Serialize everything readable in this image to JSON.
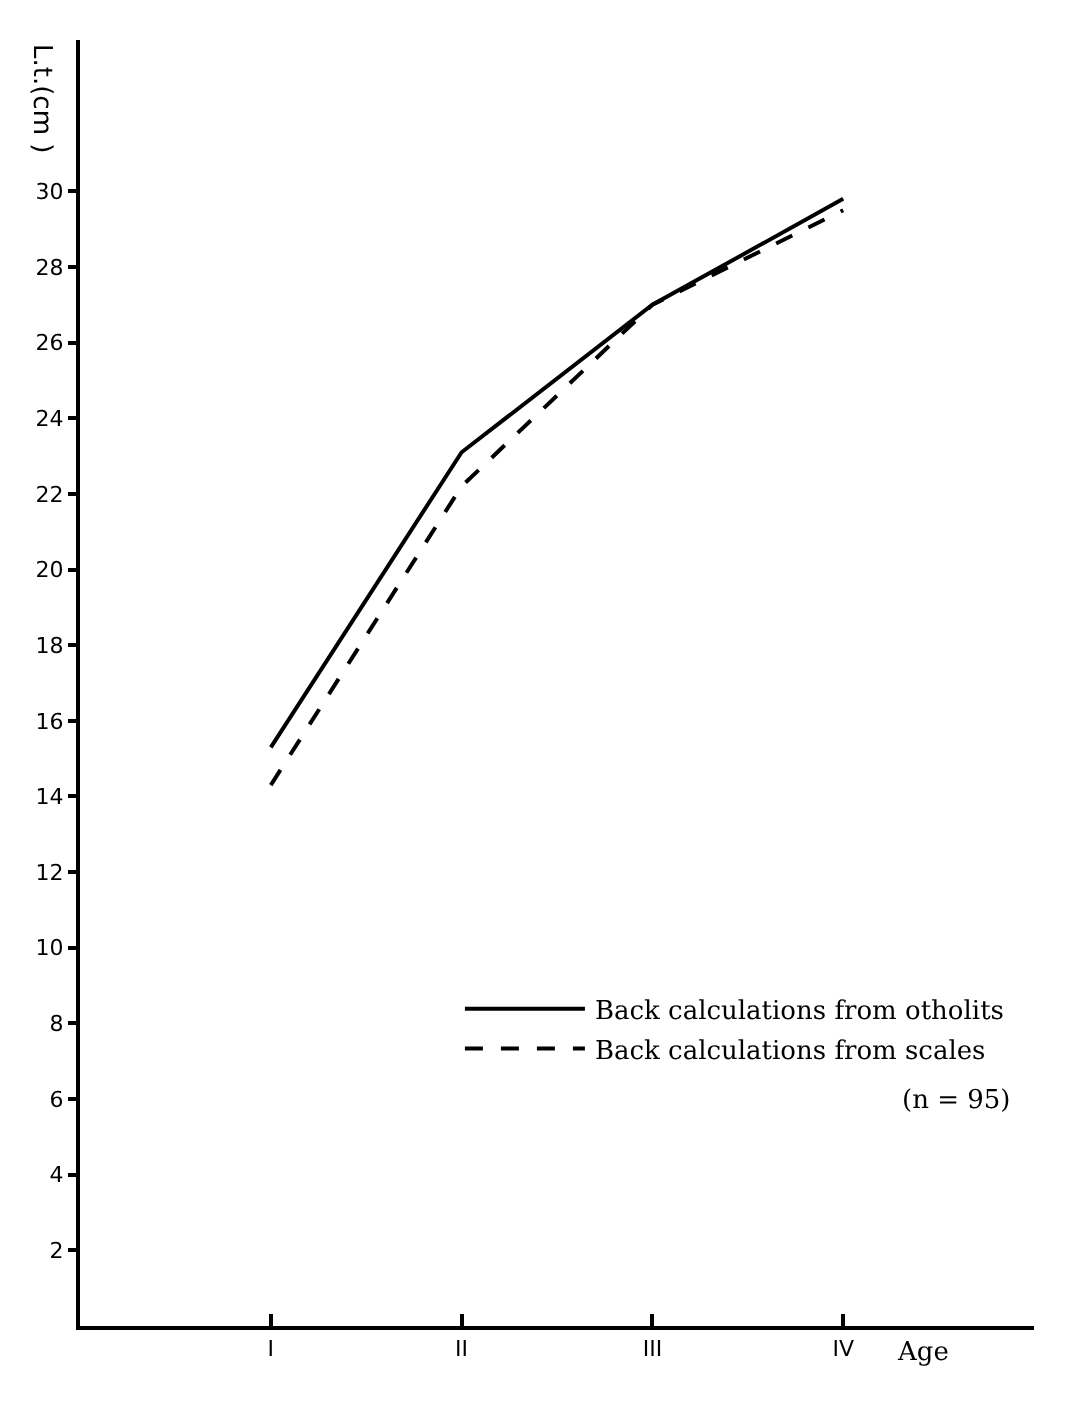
{
  "chart_data": {
    "type": "line",
    "xlabel": "Age",
    "ylabel": "L.t.(cm )",
    "categories": [
      "I",
      "II",
      "III",
      "IV"
    ],
    "series": [
      {
        "name": "Back calculations from otholits",
        "color": "#000000",
        "values": [
          15.3,
          23.1,
          27.0,
          29.8
        ],
        "line_style": "solid"
      },
      {
        "name": "Back calculations from scales",
        "color": "#000000",
        "values": [
          14.3,
          22.2,
          27.0,
          29.5
        ],
        "line_style": "dashed"
      }
    ],
    "ylim": [
      0,
      34
    ],
    "yticks": [
      2,
      4,
      6,
      8,
      10,
      12,
      14,
      16,
      18,
      20,
      22,
      24,
      26,
      28,
      30
    ],
    "legend": "bottom right",
    "marker": "none",
    "annotations": [
      "(n = 95)"
    ]
  }
}
